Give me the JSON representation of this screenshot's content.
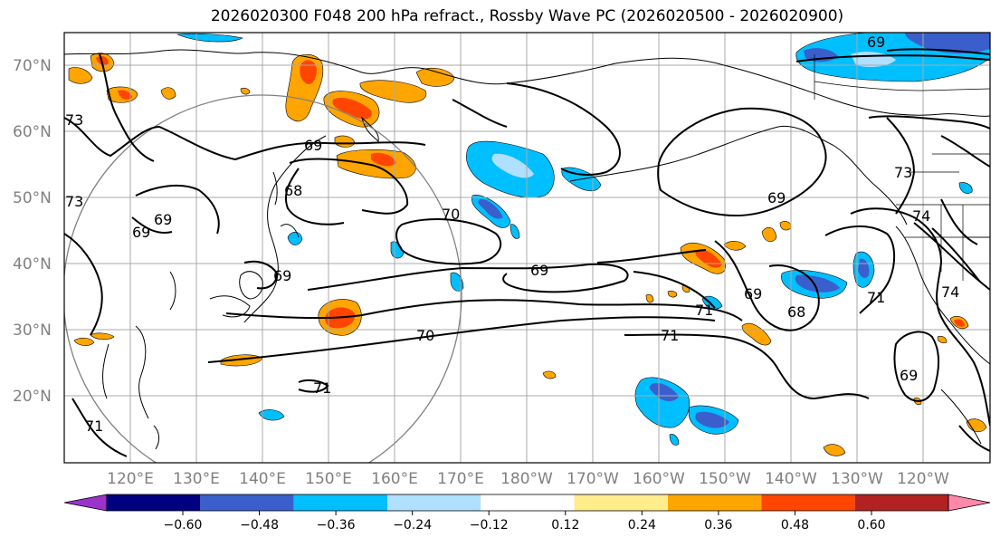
{
  "title": "2026020300 F048 200 hPa refract., Rossby Wave PC (2026020500 - 2026020900)",
  "lat_labels": [
    "70°N",
    "60°N",
    "50°N",
    "40°N",
    "30°N",
    "20°N"
  ],
  "lon_labels": [
    "120°E",
    "130°E",
    "140°E",
    "150°E",
    "160°E",
    "170°E",
    "180°W",
    "170°W",
    "160°W",
    "150°W",
    "140°W",
    "130°W",
    "120°W"
  ],
  "contour_labels": [
    "69",
    "69",
    "69",
    "68",
    "70",
    "69",
    "70",
    "69",
    "71",
    "71",
    "69",
    "68",
    "71",
    "74",
    "73",
    "69",
    "74",
    "71",
    "73",
    "69",
    "73",
    "71",
    "69"
  ],
  "colorbar": {
    "ticks": [
      "−0.60",
      "−0.48",
      "−0.36",
      "−0.24",
      "−0.12",
      "0.12",
      "0.24",
      "0.36",
      "0.48",
      "0.60"
    ],
    "colors": [
      "#9933cc",
      "#000080",
      "#3a5fcd",
      "#00bfff",
      "#b0e0ff",
      "#ffffff",
      "#ffec8b",
      "#ffa500",
      "#ff4500",
      "#b22222",
      "#ff88aa"
    ]
  },
  "palette": {
    "purple": "#9933cc",
    "navy": "#000080",
    "royal": "#3a5fcd",
    "sky": "#00bfff",
    "light": "#b0e0ff",
    "yellow": "#ffec8b",
    "orange": "#ffa500",
    "red_orange": "#ff4500",
    "firebrick": "#b22222",
    "pink": "#ff88aa"
  }
}
